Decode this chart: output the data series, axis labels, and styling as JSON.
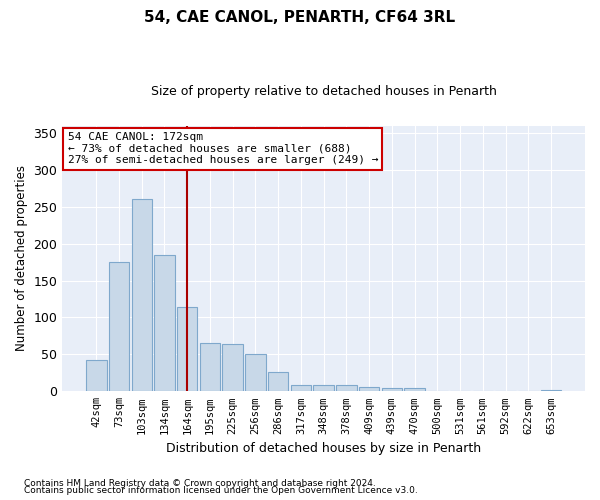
{
  "title": "54, CAE CANOL, PENARTH, CF64 3RL",
  "subtitle": "Size of property relative to detached houses in Penarth",
  "xlabel": "Distribution of detached houses by size in Penarth",
  "ylabel": "Number of detached properties",
  "bar_color": "#c8d8e8",
  "bar_edge_color": "#7fa8cc",
  "bg_color": "#e8eef8",
  "annotation_line1": "54 CAE CANOL: 172sqm",
  "annotation_line2": "← 73% of detached houses are smaller (688)",
  "annotation_line3": "27% of semi-detached houses are larger (249) →",
  "vline_idx": 4,
  "vline_color": "#aa0000",
  "categories": [
    "42sqm",
    "73sqm",
    "103sqm",
    "134sqm",
    "164sqm",
    "195sqm",
    "225sqm",
    "256sqm",
    "286sqm",
    "317sqm",
    "348sqm",
    "378sqm",
    "409sqm",
    "439sqm",
    "470sqm",
    "500sqm",
    "531sqm",
    "561sqm",
    "592sqm",
    "622sqm",
    "653sqm"
  ],
  "values": [
    43,
    175,
    260,
    185,
    114,
    65,
    64,
    50,
    26,
    9,
    8,
    9,
    6,
    5,
    4,
    1,
    1,
    1,
    1,
    0,
    2
  ],
  "ylim": [
    0,
    360
  ],
  "yticks": [
    0,
    50,
    100,
    150,
    200,
    250,
    300,
    350
  ],
  "footnote1": "Contains HM Land Registry data © Crown copyright and database right 2024.",
  "footnote2": "Contains public sector information licensed under the Open Government Licence v3.0."
}
